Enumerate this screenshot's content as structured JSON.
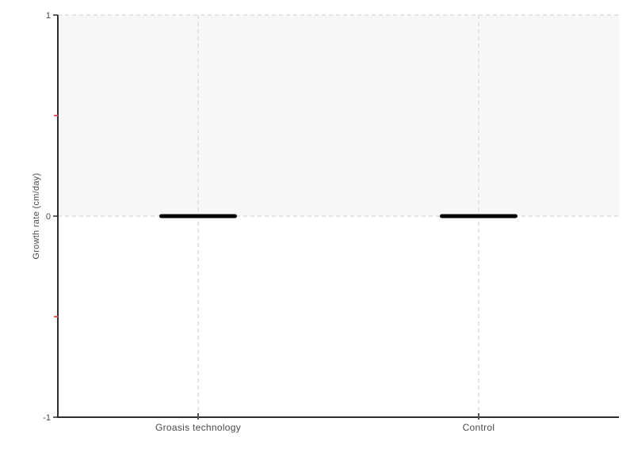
{
  "chart_data": {
    "type": "bar",
    "title": "",
    "categories": [
      "Groasis technology",
      "Control"
    ],
    "values": [
      0,
      0
    ],
    "xlabel": "",
    "ylabel": "Growth rate (cm/day)",
    "ylim": [
      -1,
      1
    ],
    "yticks_major": [
      1,
      0,
      -1
    ],
    "ytick_labels": [
      "1",
      "0",
      "-1"
    ],
    "yticks_minor": [
      0.5,
      -0.5
    ],
    "grid": "dashed",
    "legend_position": "none",
    "plot_band": {
      "from": 0,
      "to": 1,
      "color": "#f7f7f7"
    },
    "colors": {
      "bar": "#050505",
      "axis": "#2f2f2f",
      "grid": "#e4e4e4",
      "tick": "#2f2f2f",
      "minor_tick": "#ef5b5b",
      "category_tick": "#555555",
      "text": "#4a4a4a",
      "background": "#ffffff"
    }
  }
}
